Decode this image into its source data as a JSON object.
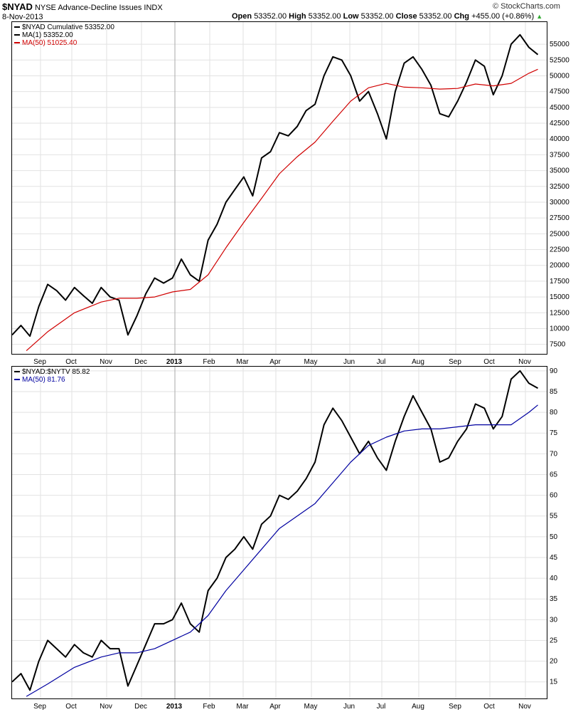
{
  "header": {
    "symbol": "$NYAD",
    "name": "NYSE Advance-Decline Issues",
    "exchange": "INDX",
    "date": "8-Nov-2013",
    "ohlc": {
      "open_label": "Open",
      "open": "53352.00",
      "high_label": "High",
      "high": "53352.00",
      "low_label": "Low",
      "low": "53352.00",
      "close_label": "Close",
      "close": "53352.00",
      "chg_label": "Chg",
      "chg": "+455.00 (+0.86%)"
    },
    "brand": "© StockCharts.com",
    "up_arrow_color": "#33aa33"
  },
  "top_legend": [
    {
      "text": "$NYAD  Cumulative 53352.00",
      "color": "#000000"
    },
    {
      "text": "MA(1) 53352.00",
      "color": "#000000"
    },
    {
      "text": "MA(50) 51025.40",
      "color": "#d00000"
    }
  ],
  "bottom_legend": [
    {
      "text": "$NYAD:$NYTV  85.82",
      "color": "#000000"
    },
    {
      "text": "MA(50) 81.76",
      "color": "#0000a0"
    }
  ],
  "chart_data": [
    {
      "type": "line",
      "x_ticks": [
        "Sep",
        "Oct",
        "Nov",
        "Dec",
        "2013",
        "Feb",
        "Mar",
        "Apr",
        "May",
        "Jun",
        "Jul",
        "Aug",
        "Sep",
        "Oct",
        "Nov"
      ],
      "y_ticks": [
        7500,
        10000,
        12500,
        15000,
        17500,
        20000,
        22500,
        25000,
        27500,
        30000,
        32500,
        35000,
        37500,
        40000,
        42500,
        45000,
        47500,
        50000,
        52500,
        55000
      ],
      "ylim": [
        6000,
        58500
      ],
      "grid": true,
      "legend": "top-left",
      "series": [
        {
          "name": "$NYAD  Cumulative",
          "color": "#000000",
          "x": [
            0,
            5,
            10,
            15,
            20,
            25,
            30,
            35,
            40,
            45,
            50,
            55,
            60,
            65,
            70,
            75,
            80,
            85,
            90,
            95,
            100,
            105,
            110,
            115,
            120,
            125,
            130,
            135,
            140,
            145,
            150,
            155,
            160,
            165,
            170,
            175,
            180,
            185,
            190,
            195,
            200,
            205,
            210,
            215,
            220,
            225,
            230,
            235,
            240,
            245,
            250,
            255,
            260,
            265,
            270,
            275,
            280,
            285,
            290,
            295
          ],
          "y": [
            9000,
            10500,
            8800,
            13500,
            17000,
            16000,
            14500,
            16500,
            15200,
            14000,
            16500,
            15000,
            14500,
            9000,
            12000,
            15500,
            18000,
            17200,
            18000,
            21000,
            18500,
            17500,
            24000,
            26500,
            30000,
            32000,
            34000,
            31000,
            37000,
            38000,
            41000,
            40500,
            42000,
            44500,
            45500,
            50000,
            53000,
            52500,
            50000,
            46000,
            47500,
            44000,
            40000,
            47500,
            52000,
            53000,
            51000,
            48500,
            44000,
            43500,
            46000,
            49000,
            52500,
            51500,
            47000,
            50000,
            55000,
            56500,
            54500,
            53352
          ]
        },
        {
          "name": "MA(50)",
          "color": "#d00000",
          "x": [
            8,
            20,
            35,
            50,
            60,
            70,
            80,
            90,
            100,
            110,
            120,
            130,
            140,
            150,
            160,
            170,
            180,
            190,
            200,
            210,
            220,
            230,
            240,
            250,
            260,
            270,
            280,
            290,
            295
          ],
          "y": [
            6500,
            9500,
            12500,
            14200,
            14800,
            14800,
            15000,
            15800,
            16200,
            18500,
            22800,
            26800,
            30600,
            34500,
            37200,
            39500,
            42800,
            46000,
            48100,
            48800,
            48200,
            48100,
            47900,
            48000,
            48700,
            48400,
            48800,
            50400,
            51025
          ]
        }
      ]
    },
    {
      "type": "line",
      "x_ticks": [
        "Sep",
        "Oct",
        "Nov",
        "Dec",
        "2013",
        "Feb",
        "Mar",
        "Apr",
        "May",
        "Jun",
        "Jul",
        "Aug",
        "Sep",
        "Oct",
        "Nov"
      ],
      "y_ticks": [
        15,
        20,
        25,
        30,
        35,
        40,
        45,
        50,
        55,
        60,
        65,
        70,
        75,
        80,
        85,
        90
      ],
      "ylim": [
        11,
        91
      ],
      "grid": true,
      "legend": "top-left",
      "series": [
        {
          "name": "$NYAD:$NYTV",
          "color": "#000000",
          "x": [
            0,
            5,
            10,
            15,
            20,
            25,
            30,
            35,
            40,
            45,
            50,
            55,
            60,
            65,
            70,
            75,
            80,
            85,
            90,
            95,
            100,
            105,
            110,
            115,
            120,
            125,
            130,
            135,
            140,
            145,
            150,
            155,
            160,
            165,
            170,
            175,
            180,
            185,
            190,
            195,
            200,
            205,
            210,
            215,
            220,
            225,
            230,
            235,
            240,
            245,
            250,
            255,
            260,
            265,
            270,
            275,
            280,
            285,
            290,
            295
          ],
          "y": [
            15,
            17,
            13,
            20,
            25,
            23,
            21,
            24,
            22,
            21,
            25,
            23,
            23,
            14,
            19,
            24,
            29,
            29,
            30,
            34,
            29,
            27,
            37,
            40,
            45,
            47,
            50,
            47,
            53,
            55,
            60,
            59,
            61,
            64,
            68,
            77,
            81,
            78,
            74,
            70,
            73,
            69,
            66,
            73,
            79,
            84,
            80,
            76,
            68,
            69,
            73,
            76,
            82,
            81,
            76,
            79,
            88,
            90,
            87,
            85.82
          ]
        },
        {
          "name": "MA(50)",
          "color": "#0000a0",
          "x": [
            8,
            20,
            35,
            50,
            60,
            70,
            80,
            90,
            100,
            110,
            120,
            130,
            140,
            150,
            160,
            170,
            180,
            190,
            200,
            210,
            220,
            230,
            240,
            250,
            260,
            270,
            280,
            290,
            295
          ],
          "y": [
            11.5,
            14.5,
            18.5,
            21,
            22,
            22,
            23,
            25,
            27,
            31,
            37,
            42,
            47,
            52,
            55,
            58,
            63,
            68,
            72,
            74,
            75.5,
            76,
            76,
            76.5,
            77,
            77,
            77,
            80,
            81.76
          ]
        }
      ]
    }
  ]
}
